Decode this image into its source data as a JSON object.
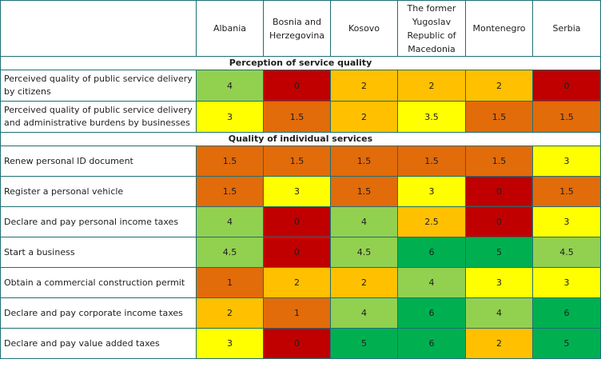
{
  "table": {
    "corner": "",
    "columns": [
      "Albania",
      "Bosnia and Herzegovina",
      "Kosovo",
      "The former Yugoslav Republic of Macedonia",
      "Montenegro",
      "Serbia"
    ],
    "sections": [
      {
        "title": "Perception of service quality",
        "rows": [
          {
            "label": "Perceived quality of public service delivery by citizens",
            "values": [
              "4",
              "0",
              "2",
              "2",
              "2",
              "0"
            ],
            "colors": [
              "#92d050",
              "#c00000",
              "#ffc000",
              "#ffc000",
              "#ffc000",
              "#c00000"
            ]
          },
          {
            "label": "Perceived quality of public service delivery and administrative burdens by businesses",
            "values": [
              "3",
              "1.5",
              "2",
              "3.5",
              "1.5",
              "1.5"
            ],
            "colors": [
              "#ffff00",
              "#e26b0a",
              "#ffc000",
              "#ffff00",
              "#e26b0a",
              "#e26b0a"
            ]
          }
        ]
      },
      {
        "title": "Quality of individual services",
        "rows": [
          {
            "label": "Renew personal ID document",
            "values": [
              "1.5",
              "1.5",
              "1.5",
              "1.5",
              "1.5",
              "3"
            ],
            "colors": [
              "#e26b0a",
              "#e26b0a",
              "#e26b0a",
              "#e26b0a",
              "#e26b0a",
              "#ffff00"
            ]
          },
          {
            "label": "Register a personal vehicle",
            "values": [
              "1.5",
              "3",
              "1.5",
              "3",
              "0",
              "1.5"
            ],
            "colors": [
              "#e26b0a",
              "#ffff00",
              "#e26b0a",
              "#ffff00",
              "#c00000",
              "#e26b0a"
            ]
          },
          {
            "label": "Declare and pay personal income taxes",
            "values": [
              "4",
              "0",
              "4",
              "2.5",
              "0",
              "3"
            ],
            "colors": [
              "#92d050",
              "#c00000",
              "#92d050",
              "#ffc000",
              "#c00000",
              "#ffff00"
            ]
          },
          {
            "label": "Start a business",
            "values": [
              "4.5",
              "0",
              "4.5",
              "6",
              "5",
              "4.5"
            ],
            "colors": [
              "#92d050",
              "#c00000",
              "#92d050",
              "#00b050",
              "#00b050",
              "#92d050"
            ]
          },
          {
            "label": "Obtain a commercial construction permit",
            "values": [
              "1",
              "2",
              "2",
              "4",
              "3",
              "3"
            ],
            "colors": [
              "#e26b0a",
              "#ffc000",
              "#ffc000",
              "#92d050",
              "#ffff00",
              "#ffff00"
            ]
          },
          {
            "label": "Declare and pay corporate income taxes",
            "values": [
              "2",
              "1",
              "4",
              "6",
              "4",
              "6"
            ],
            "colors": [
              "#ffc000",
              "#e26b0a",
              "#92d050",
              "#00b050",
              "#92d050",
              "#00b050"
            ]
          },
          {
            "label": "Declare and pay value added taxes",
            "values": [
              "3",
              "0",
              "5",
              "6",
              "2",
              "5"
            ],
            "colors": [
              "#ffff00",
              "#c00000",
              "#00b050",
              "#00b050",
              "#ffc000",
              "#00b050"
            ]
          }
        ]
      }
    ]
  }
}
